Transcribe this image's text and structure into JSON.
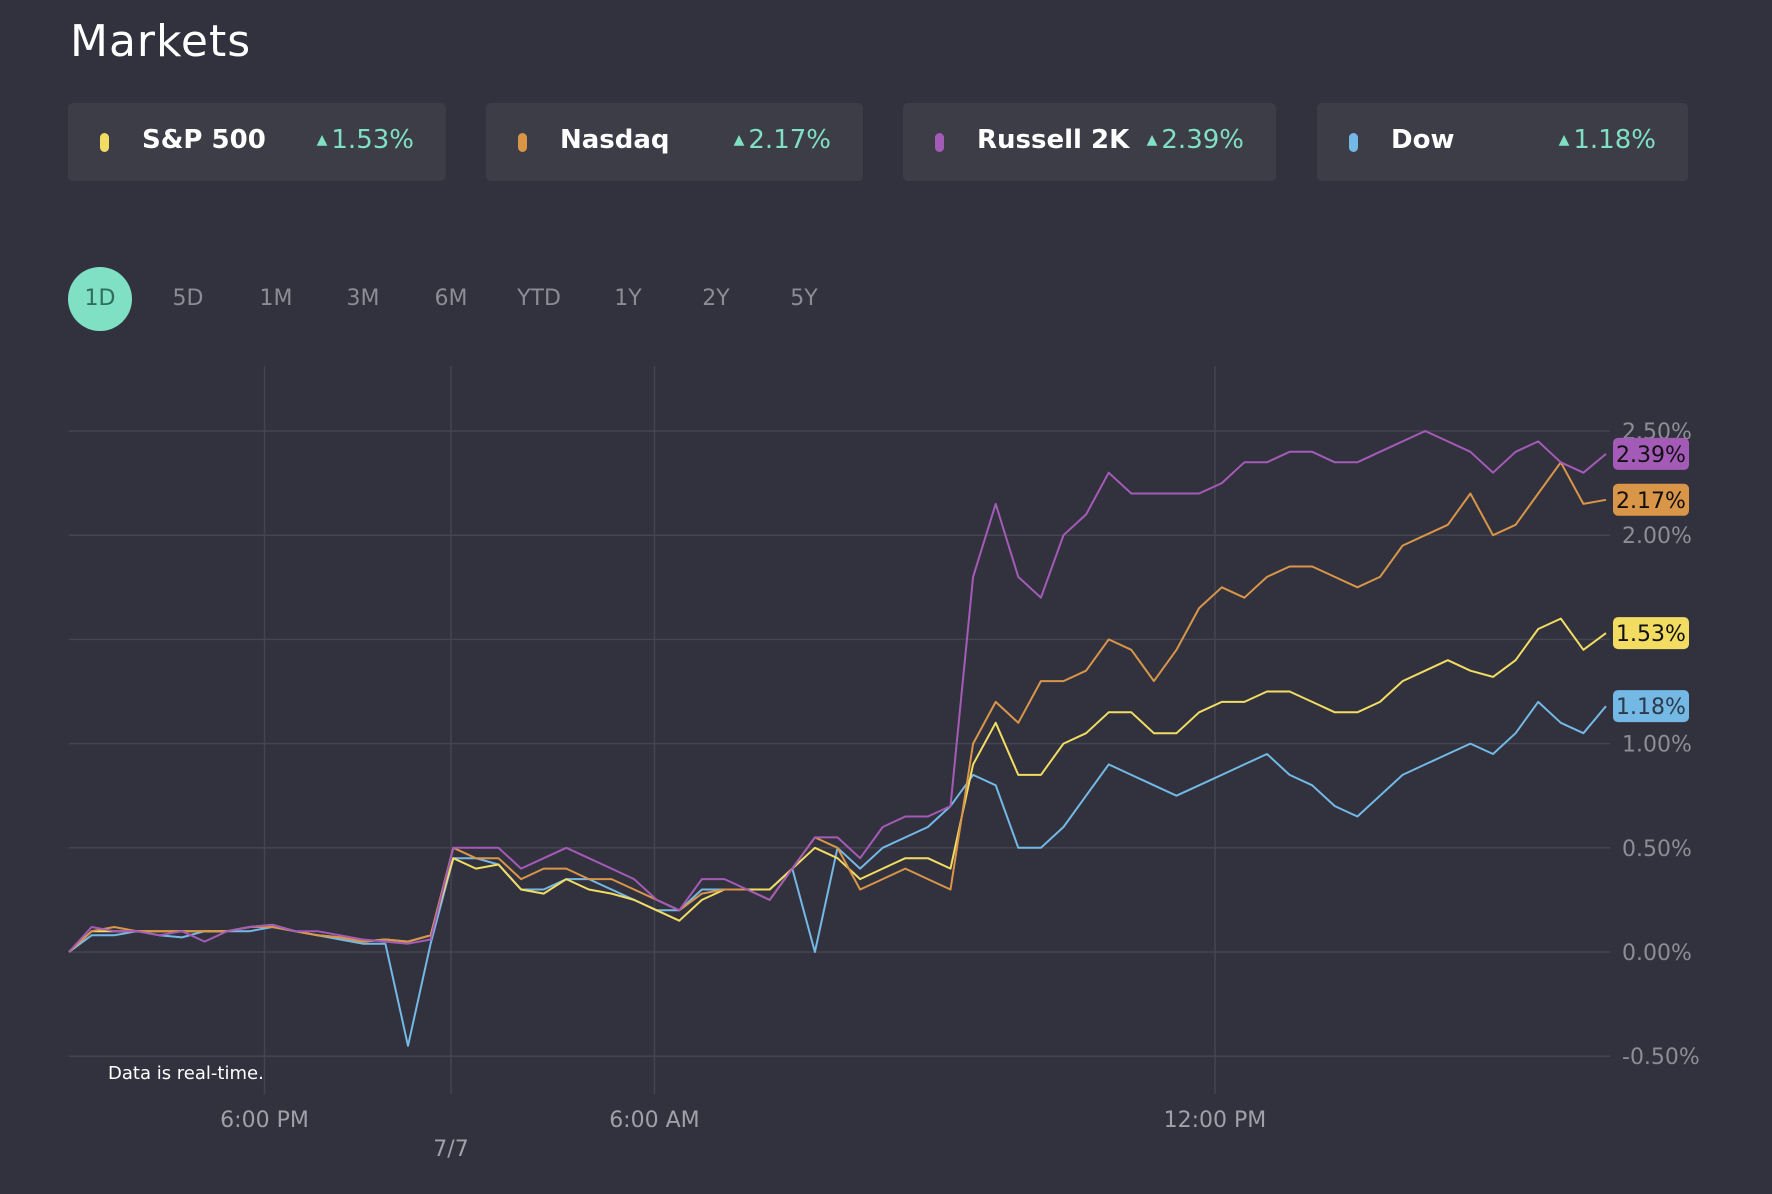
{
  "title": "Markets",
  "indices": [
    {
      "name": "S&P 500",
      "change": "1.53%",
      "color": "#f2dd62"
    },
    {
      "name": "Nasdaq",
      "change": "2.17%",
      "color": "#d99548"
    },
    {
      "name": "Russell 2K",
      "change": "2.39%",
      "color": "#a45bb8"
    },
    {
      "name": "Dow",
      "change": "1.18%",
      "color": "#74b9e6"
    }
  ],
  "up_arrow": "▲",
  "ranges": [
    "1D",
    "5D",
    "1M",
    "3M",
    "6M",
    "YTD",
    "1Y",
    "2Y",
    "5Y"
  ],
  "active_range": "1D",
  "note": "Data is real-time.",
  "chart_data": {
    "type": "line",
    "ylim": [
      -0.5,
      2.5
    ],
    "yticks": [
      "2.50%",
      "2.00%",
      "1.50%",
      "1.00%",
      "0.50%",
      "0.00%",
      "-0.50%"
    ],
    "ytick_values": [
      2.5,
      2.0,
      1.5,
      1.0,
      0.5,
      0.0,
      -0.5
    ],
    "hidden_ytick": "1.50%",
    "points": 69,
    "xticks": [
      {
        "label": "6:00 PM",
        "index": 8.65
      },
      {
        "label": "7/7",
        "index": 16.9,
        "sub": true
      },
      {
        "label": "6:00 AM",
        "index": 25.9
      },
      {
        "label": "12:00 PM",
        "index": 50.7
      }
    ],
    "series": [
      {
        "name": "S&P 500",
        "color": "#f2dd62",
        "last": "1.53%",
        "values": [
          0.0,
          0.1,
          0.1,
          0.1,
          0.1,
          0.1,
          0.1,
          0.1,
          0.12,
          0.13,
          0.1,
          0.08,
          0.07,
          0.05,
          0.06,
          0.05,
          0.08,
          0.45,
          0.4,
          0.42,
          0.3,
          0.28,
          0.35,
          0.3,
          0.28,
          0.25,
          0.2,
          0.15,
          0.25,
          0.3,
          0.3,
          0.3,
          0.4,
          0.5,
          0.45,
          0.35,
          0.4,
          0.45,
          0.45,
          0.4,
          0.9,
          1.1,
          0.85,
          0.85,
          1.0,
          1.05,
          1.15,
          1.15,
          1.05,
          1.05,
          1.15,
          1.2,
          1.2,
          1.25,
          1.25,
          1.2,
          1.15,
          1.15,
          1.2,
          1.3,
          1.35,
          1.4,
          1.35,
          1.32,
          1.4,
          1.55,
          1.6,
          1.45,
          1.53
        ]
      },
      {
        "name": "Nasdaq",
        "color": "#d99548",
        "last": "2.17%",
        "values": [
          0.0,
          0.1,
          0.12,
          0.1,
          0.1,
          0.1,
          0.1,
          0.1,
          0.12,
          0.12,
          0.1,
          0.08,
          0.07,
          0.05,
          0.06,
          0.05,
          0.08,
          0.5,
          0.45,
          0.45,
          0.35,
          0.4,
          0.4,
          0.35,
          0.35,
          0.3,
          0.25,
          0.2,
          0.28,
          0.3,
          0.3,
          0.25,
          0.4,
          0.55,
          0.5,
          0.3,
          0.35,
          0.4,
          0.35,
          0.3,
          1.0,
          1.2,
          1.1,
          1.3,
          1.3,
          1.35,
          1.5,
          1.45,
          1.3,
          1.45,
          1.65,
          1.75,
          1.7,
          1.8,
          1.85,
          1.85,
          1.8,
          1.75,
          1.8,
          1.95,
          2.0,
          2.05,
          2.2,
          2.0,
          2.05,
          2.2,
          2.35,
          2.15,
          2.17
        ]
      },
      {
        "name": "Russell 2K",
        "color": "#a45bb8",
        "last": "2.39%",
        "values": [
          0.0,
          0.12,
          0.1,
          0.1,
          0.08,
          0.1,
          0.05,
          0.1,
          0.12,
          0.13,
          0.1,
          0.1,
          0.08,
          0.06,
          0.05,
          0.04,
          0.06,
          0.5,
          0.5,
          0.5,
          0.4,
          0.45,
          0.5,
          0.45,
          0.4,
          0.35,
          0.25,
          0.2,
          0.35,
          0.35,
          0.3,
          0.25,
          0.4,
          0.55,
          0.55,
          0.45,
          0.6,
          0.65,
          0.65,
          0.7,
          1.8,
          2.15,
          1.8,
          1.7,
          2.0,
          2.1,
          2.3,
          2.2,
          2.2,
          2.2,
          2.2,
          2.25,
          2.35,
          2.35,
          2.4,
          2.4,
          2.35,
          2.35,
          2.4,
          2.45,
          2.5,
          2.45,
          2.4,
          2.3,
          2.4,
          2.45,
          2.35,
          2.3,
          2.39
        ]
      },
      {
        "name": "Dow",
        "color": "#74b9e6",
        "last": "1.18%",
        "values": [
          0.0,
          0.08,
          0.08,
          0.1,
          0.08,
          0.07,
          0.1,
          0.1,
          0.1,
          0.12,
          0.1,
          0.08,
          0.06,
          0.04,
          0.04,
          -0.45,
          0.04,
          0.45,
          0.45,
          0.42,
          0.3,
          0.3,
          0.35,
          0.35,
          0.3,
          0.25,
          0.2,
          0.2,
          0.3,
          0.3,
          0.3,
          0.3,
          0.4,
          0.0,
          0.5,
          0.4,
          0.5,
          0.55,
          0.6,
          0.7,
          0.85,
          0.8,
          0.5,
          0.5,
          0.6,
          0.75,
          0.9,
          0.85,
          0.8,
          0.75,
          0.8,
          0.85,
          0.9,
          0.95,
          0.85,
          0.8,
          0.7,
          0.65,
          0.75,
          0.85,
          0.9,
          0.95,
          1.0,
          0.95,
          1.05,
          1.2,
          1.1,
          1.05,
          1.18
        ]
      }
    ]
  }
}
